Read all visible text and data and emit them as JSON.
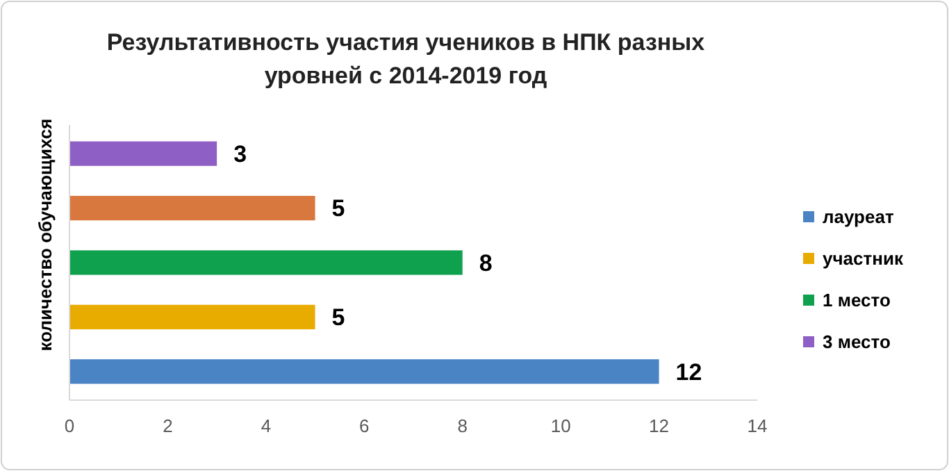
{
  "chart_data": {
    "type": "bar",
    "orientation": "horizontal",
    "title": "Результативность участия учеников в НПК разных уровней с 2014-2019 год",
    "ylabel": "количество обучающихся",
    "categories": [
      null,
      null,
      null,
      null,
      null
    ],
    "series": [
      {
        "name": "3 место",
        "color": "#8e5fc4",
        "values": [
          3,
          null,
          null,
          null,
          null
        ]
      },
      {
        "color": "#d9783e",
        "values": [
          null,
          5,
          null,
          null,
          null
        ]
      },
      {
        "name": "1 место",
        "color": "#10a14f",
        "values": [
          null,
          null,
          8,
          null,
          null
        ]
      },
      {
        "name": "участник",
        "color": "#e8ab00",
        "values": [
          null,
          null,
          null,
          5,
          null
        ]
      },
      {
        "name": "лауреат",
        "color": "#4a84c4",
        "values": [
          null,
          null,
          null,
          null,
          12
        ]
      }
    ],
    "xlim": [
      0,
      14
    ],
    "xticks": [
      0,
      2,
      4,
      6,
      8,
      10,
      12,
      14
    ],
    "data_labels": true,
    "legend": "right",
    "grid": false
  }
}
